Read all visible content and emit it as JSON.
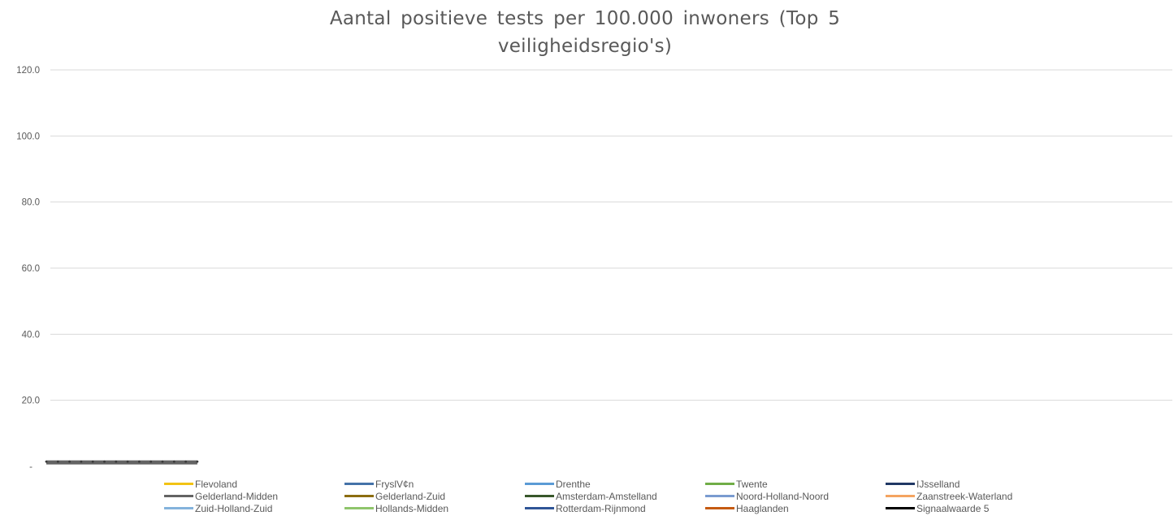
{
  "chart_data": {
    "type": "line",
    "title": "Aantal positieve tests per 100.000 inwoners (Top 5 veiligheidsregio's)",
    "title_lines": [
      "Aantal positieve tests per 100.000 inwoners (Top 5",
      "veiligheidsregio's)"
    ],
    "xlabel": "",
    "ylabel": "",
    "ylim": [
      0,
      120
    ],
    "y_ticks": [
      {
        "value": 0,
        "label": "-"
      },
      {
        "value": 20,
        "label": "20.0"
      },
      {
        "value": 40,
        "label": "40.0"
      },
      {
        "value": 60,
        "label": "60.0"
      },
      {
        "value": 80,
        "label": "80.0"
      },
      {
        "value": 100,
        "label": "100.0"
      },
      {
        "value": 120,
        "label": "120.0"
      }
    ],
    "grid": true,
    "legend_placement": "bottom",
    "x_count": 14,
    "series": [
      {
        "name": "Flevoland",
        "color": "#f2c314",
        "values": []
      },
      {
        "name": "Fryslâ€n",
        "display_name": "FryslV¢n",
        "color": "#4472a8",
        "values": []
      },
      {
        "name": "Drenthe",
        "color": "#5b9bd5",
        "values": []
      },
      {
        "name": "Twente",
        "color": "#70ad47",
        "values": []
      },
      {
        "name": "IJsselland",
        "display_name": "IJsselland",
        "color": "#203864",
        "values": []
      },
      {
        "name": "Gelderland-Midden",
        "color": "#636363",
        "values": [
          1.2,
          1.2,
          1.2,
          1.2,
          1.2,
          1.2,
          1.2,
          1.2,
          1.2,
          1.2,
          1.2,
          1.2,
          1.2,
          1.2
        ]
      },
      {
        "name": "Gelderland-Zuid",
        "color": "#8c6d0f",
        "values": []
      },
      {
        "name": "Amsterdam-Amstelland",
        "color": "#38572a",
        "values": []
      },
      {
        "name": "Noord-Holland-Noord",
        "color": "#7a9bd0",
        "values": []
      },
      {
        "name": "Zaanstreek-Waterland",
        "color": "#f4a460",
        "values": []
      },
      {
        "name": "Zuid-Holland-Zuid",
        "color": "#84b3dc",
        "values": []
      },
      {
        "name": "Hollands-Midden",
        "color": "#8fc56b",
        "values": []
      },
      {
        "name": "Rotterdam-Rijnmond",
        "color": "#2f5597",
        "values": []
      },
      {
        "name": "Haaglanden",
        "color": "#c55a11",
        "values": []
      },
      {
        "name": "Signaalwaarde 5",
        "color": "#000000",
        "values": []
      }
    ]
  }
}
